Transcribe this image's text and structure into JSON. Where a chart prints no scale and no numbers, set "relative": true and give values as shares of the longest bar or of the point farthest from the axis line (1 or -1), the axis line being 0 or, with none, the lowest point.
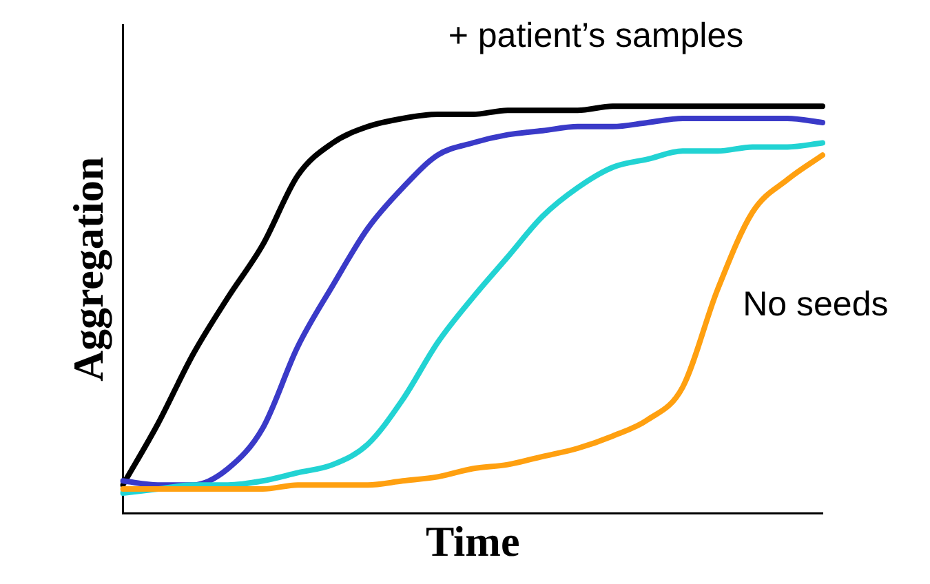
{
  "chart_data": {
    "type": "line",
    "relative": true,
    "xlabel": "Time",
    "ylabel": "Aggregation",
    "marker": "none",
    "line_style": "solid",
    "grid": false,
    "legend": false,
    "categories": [
      null,
      null,
      null,
      null,
      null,
      null,
      null,
      null,
      null,
      null,
      null,
      null,
      null,
      null,
      null,
      null,
      null,
      null,
      null,
      null,
      null
    ],
    "series": [
      {
        "color": "#000000",
        "values": [
          0.07,
          0.22,
          0.39,
          0.53,
          0.66,
          0.83,
          0.91,
          0.95,
          0.97,
          0.98,
          0.98,
          0.99,
          0.99,
          0.99,
          1.0,
          1.0,
          1.0,
          1.0,
          1.0,
          1.0,
          1.0
        ]
      },
      {
        "color": "#3a3ac8",
        "values": [
          0.08,
          0.07,
          0.07,
          0.11,
          0.21,
          0.41,
          0.56,
          0.7,
          0.8,
          0.88,
          0.91,
          0.93,
          0.94,
          0.95,
          0.95,
          0.96,
          0.97,
          0.97,
          0.97,
          0.97,
          0.96
        ]
      },
      {
        "color": "#22d3d3",
        "values": [
          0.05,
          0.06,
          0.07,
          0.07,
          0.08,
          0.1,
          0.12,
          0.17,
          0.28,
          0.42,
          0.53,
          0.63,
          0.73,
          0.8,
          0.85,
          0.87,
          0.89,
          0.89,
          0.9,
          0.9,
          0.91
        ]
      },
      {
        "color": "#ffa010",
        "values": [
          0.06,
          0.06,
          0.06,
          0.06,
          0.06,
          0.07,
          0.07,
          0.07,
          0.08,
          0.09,
          0.11,
          0.12,
          0.14,
          0.16,
          0.19,
          0.23,
          0.31,
          0.55,
          0.74,
          0.82,
          0.88
        ]
      }
    ],
    "annotations": [
      "+ patient’s samples",
      "No seeds"
    ]
  }
}
